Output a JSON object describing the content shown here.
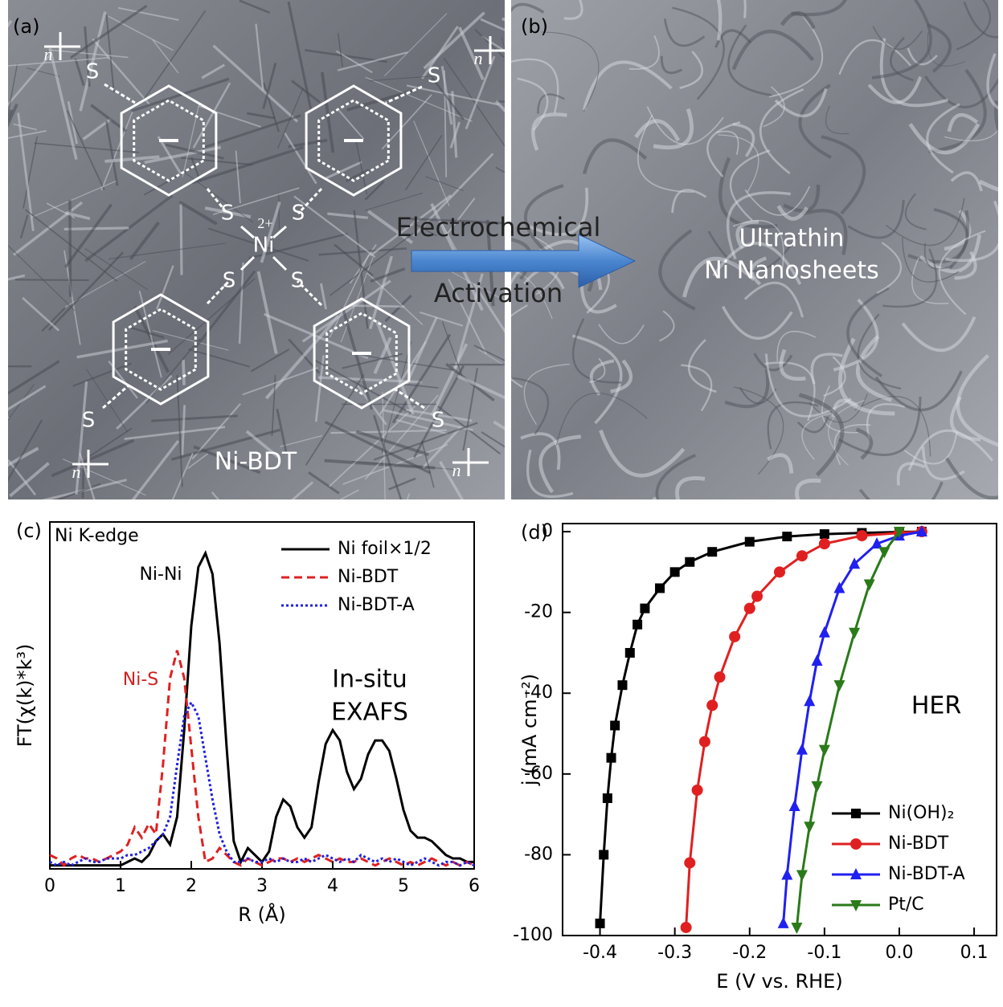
{
  "panels": {
    "a": {
      "label": "(a)",
      "material": "Ni-BDT",
      "metal": "Ni",
      "charge": "2+",
      "sulfur_labels": [
        "S",
        "S",
        "S",
        "S",
        "S",
        "S",
        "S",
        "S"
      ],
      "n_labels": [
        "n",
        "n",
        "n",
        "n"
      ]
    },
    "b": {
      "label": "(b)",
      "caption_lines": [
        "Ultrathin",
        "Ni Nanosheets"
      ]
    },
    "arrow": {
      "lines": [
        "Electrochemical",
        "Activation"
      ]
    }
  },
  "chart_data": [
    {
      "type": "line",
      "panel_label": "(c)",
      "annotations": [
        "Ni K-edge",
        "Ni-Ni",
        "Ni-S",
        "In-situ",
        "EXAFS"
      ],
      "x_label": "R (Å)",
      "y_label": "FT(χ(k)*k³)",
      "xlim": [
        0,
        6
      ],
      "xticks": [
        0,
        1,
        2,
        3,
        4,
        5,
        6
      ],
      "ylim": [
        0,
        1
      ],
      "grid": false,
      "legend": "upper right",
      "x": [
        0,
        0.1,
        0.2,
        0.3,
        0.4,
        0.5,
        0.6,
        0.7,
        0.8,
        0.9,
        1.0,
        1.1,
        1.2,
        1.3,
        1.4,
        1.5,
        1.6,
        1.7,
        1.8,
        1.9,
        2.0,
        2.1,
        2.2,
        2.3,
        2.4,
        2.5,
        2.6,
        2.7,
        2.8,
        2.9,
        3.0,
        3.1,
        3.2,
        3.3,
        3.4,
        3.5,
        3.6,
        3.7,
        3.8,
        3.9,
        4.0,
        4.1,
        4.2,
        4.3,
        4.4,
        4.5,
        4.6,
        4.7,
        4.8,
        4.9,
        5.0,
        5.1,
        5.2,
        5.3,
        5.4,
        5.5,
        5.6,
        5.7,
        5.8,
        5.9,
        6.0
      ],
      "series": [
        {
          "name": "Ni foil×1/2",
          "color": "#000000",
          "dash": "solid",
          "values": [
            0.01,
            0.01,
            0.01,
            0.01,
            0.01,
            0.01,
            0.01,
            0.01,
            0.01,
            0.01,
            0.01,
            0.02,
            0.03,
            0.02,
            0.04,
            0.08,
            0.1,
            0.07,
            0.15,
            0.4,
            0.7,
            0.87,
            0.91,
            0.85,
            0.65,
            0.35,
            0.08,
            0.02,
            0.06,
            0.04,
            0.02,
            0.05,
            0.15,
            0.2,
            0.18,
            0.12,
            0.09,
            0.12,
            0.25,
            0.36,
            0.4,
            0.37,
            0.28,
            0.23,
            0.26,
            0.33,
            0.37,
            0.37,
            0.34,
            0.26,
            0.17,
            0.11,
            0.09,
            0.09,
            0.08,
            0.06,
            0.04,
            0.03,
            0.03,
            0.02,
            0.02
          ]
        },
        {
          "name": "Ni-BDT",
          "color": "#e02020",
          "dash": "dashed",
          "values": [
            0.04,
            0.03,
            0.01,
            0.03,
            0.04,
            0.03,
            0.03,
            0.02,
            0.03,
            0.04,
            0.05,
            0.07,
            0.12,
            0.09,
            0.13,
            0.1,
            0.3,
            0.55,
            0.63,
            0.55,
            0.35,
            0.15,
            0.02,
            0.03,
            0.06,
            0.04,
            0.02,
            0.01,
            0.03,
            0.02,
            0.01,
            0.02,
            0.03,
            0.03,
            0.02,
            0.03,
            0.02,
            0.03,
            0.04,
            0.03,
            0.02,
            0.03,
            0.02,
            0.02,
            0.03,
            0.02,
            0.01,
            0.02,
            0.03,
            0.02,
            0.01,
            0.02,
            0.01,
            0.02,
            0.03,
            0.02,
            0.01,
            0.02,
            0.01,
            0.02,
            0.01
          ]
        },
        {
          "name": "Ni-BDT-A",
          "color": "#2020e0",
          "dash": "dotted",
          "values": [
            0.02,
            0.01,
            0.02,
            0.01,
            0.02,
            0.03,
            0.02,
            0.02,
            0.03,
            0.03,
            0.03,
            0.04,
            0.04,
            0.05,
            0.06,
            0.08,
            0.1,
            0.15,
            0.3,
            0.44,
            0.48,
            0.44,
            0.32,
            0.2,
            0.1,
            0.05,
            0.02,
            0.02,
            0.03,
            0.02,
            0.02,
            0.03,
            0.02,
            0.03,
            0.02,
            0.02,
            0.03,
            0.02,
            0.03,
            0.04,
            0.03,
            0.02,
            0.03,
            0.02,
            0.04,
            0.03,
            0.02,
            0.03,
            0.02,
            0.03,
            0.02,
            0.01,
            0.02,
            0.03,
            0.02,
            0.01,
            0.02,
            0.02,
            0.01,
            0.02,
            0.01
          ]
        }
      ]
    },
    {
      "type": "line",
      "panel_label": "(d)",
      "annotations": [
        "HER"
      ],
      "x_label": "E (V vs. RHE)",
      "y_label": "j (mA cm⁻²)",
      "xlim": [
        -0.45,
        0.13
      ],
      "xticks": [
        -0.4,
        -0.3,
        -0.2,
        -0.1,
        {
          "value": 0,
          "label": "0.0"
        },
        0.1
      ],
      "ylim": [
        -100,
        2
      ],
      "yticks": [
        0,
        -20,
        -40,
        -60,
        -80,
        -100
      ],
      "grid": false,
      "legend": "lower right",
      "series": [
        {
          "name": "Ni(OH)₂",
          "color": "#000000",
          "marker": "square",
          "x": [
            0.03,
            0.0,
            -0.05,
            -0.1,
            -0.15,
            -0.2,
            -0.25,
            -0.28,
            -0.3,
            -0.32,
            -0.34,
            -0.35,
            -0.36,
            -0.37,
            -0.38,
            -0.385,
            -0.39,
            -0.395,
            -0.4
          ],
          "values": [
            0,
            -0.1,
            -0.3,
            -0.6,
            -1.2,
            -2.5,
            -5,
            -7.5,
            -10,
            -14,
            -19,
            -23,
            -30,
            -38,
            -48,
            -56,
            -66,
            -80,
            -97
          ]
        },
        {
          "name": "Ni-BDT",
          "color": "#e02020",
          "marker": "circle",
          "x": [
            0.03,
            0.0,
            -0.05,
            -0.1,
            -0.13,
            -0.16,
            -0.19,
            -0.2,
            -0.22,
            -0.24,
            -0.25,
            -0.26,
            -0.27,
            -0.28,
            -0.285
          ],
          "values": [
            0,
            -0.3,
            -1,
            -3,
            -6,
            -10,
            -16,
            -19,
            -26,
            -36,
            -43,
            -52,
            -64,
            -82,
            -98
          ]
        },
        {
          "name": "Ni-BDT-A",
          "color": "#2020f0",
          "marker": "triangle-up",
          "x": [
            0.03,
            0.0,
            -0.03,
            -0.06,
            -0.08,
            -0.1,
            -0.11,
            -0.12,
            -0.13,
            -0.14,
            -0.15,
            -0.155
          ],
          "values": [
            0,
            -1,
            -3,
            -8,
            -14,
            -25,
            -32,
            -42,
            -54,
            -68,
            -85,
            -97
          ]
        },
        {
          "name": "Pt/C",
          "color": "#2a7a1a",
          "marker": "triangle-down",
          "x": [
            0.0,
            -0.02,
            -0.04,
            -0.06,
            -0.08,
            -0.1,
            -0.11,
            -0.12,
            -0.13,
            -0.137
          ],
          "values": [
            0,
            -5,
            -13,
            -25,
            -38,
            -54,
            -63,
            -73,
            -85,
            -98
          ]
        }
      ]
    }
  ]
}
